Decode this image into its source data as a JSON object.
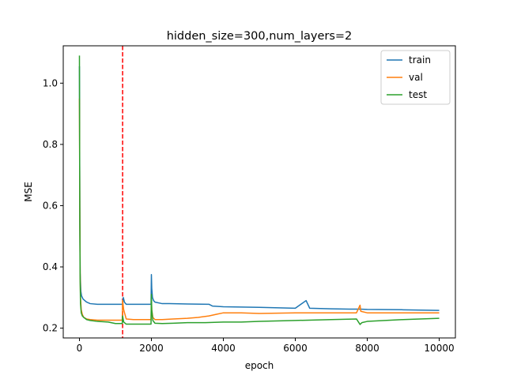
{
  "chart_data": {
    "type": "line",
    "title": "hidden_size=300,num_layers=2",
    "xlabel": "epoch",
    "ylabel": "MSE",
    "xlim": [
      -450,
      10450
    ],
    "ylim": [
      0.168,
      1.122
    ],
    "xticks": [
      0,
      2000,
      4000,
      6000,
      8000,
      10000
    ],
    "yticks": [
      0.2,
      0.4,
      0.6,
      0.8,
      1.0
    ],
    "xtick_labels": [
      "0",
      "2000",
      "4000",
      "6000",
      "8000",
      "10000"
    ],
    "ytick_labels": [
      "0.2",
      "0.4",
      "0.6",
      "0.8",
      "1.0"
    ],
    "grid": false,
    "legend_position": "top-right",
    "vline": {
      "x": 1200,
      "color": "#ff0000",
      "style": "dashed"
    },
    "series": [
      {
        "name": "train",
        "color": "#1f77b4",
        "x": [
          0,
          10,
          20,
          40,
          60,
          100,
          150,
          200,
          300,
          500,
          1000,
          1100,
          1200,
          1220,
          1250,
          1300,
          1600,
          1990,
          2000,
          2010,
          2030,
          2060,
          2100,
          2300,
          2500,
          3000,
          3600,
          3700,
          4000,
          5000,
          6000,
          6300,
          6400,
          7000,
          7500,
          7800,
          8000,
          9000,
          10000
        ],
        "y": [
          1.055,
          0.6,
          0.38,
          0.32,
          0.305,
          0.295,
          0.29,
          0.285,
          0.28,
          0.278,
          0.278,
          0.278,
          0.278,
          0.3,
          0.285,
          0.278,
          0.278,
          0.278,
          0.375,
          0.33,
          0.3,
          0.29,
          0.285,
          0.28,
          0.28,
          0.279,
          0.278,
          0.272,
          0.27,
          0.268,
          0.265,
          0.29,
          0.265,
          0.263,
          0.262,
          0.262,
          0.261,
          0.26,
          0.258
        ]
      },
      {
        "name": "val",
        "color": "#ff7f0e",
        "x": [
          0,
          10,
          20,
          30,
          50,
          80,
          120,
          200,
          300,
          500,
          800,
          1000,
          1190,
          1200,
          1230,
          1300,
          1500,
          1990,
          2000,
          2010,
          2040,
          2100,
          2300,
          2600,
          3000,
          3300,
          3600,
          3800,
          4000,
          4500,
          5000,
          5500,
          6000,
          7000,
          7700,
          7800,
          7820,
          8000,
          9000,
          10000
        ],
        "y": [
          0.95,
          0.6,
          0.38,
          0.3,
          0.26,
          0.245,
          0.235,
          0.23,
          0.228,
          0.226,
          0.226,
          0.226,
          0.226,
          0.29,
          0.26,
          0.23,
          0.228,
          0.228,
          0.29,
          0.26,
          0.235,
          0.228,
          0.228,
          0.23,
          0.232,
          0.235,
          0.24,
          0.245,
          0.25,
          0.25,
          0.248,
          0.249,
          0.25,
          0.25,
          0.25,
          0.275,
          0.255,
          0.25,
          0.25,
          0.25
        ]
      },
      {
        "name": "test",
        "color": "#2ca02c",
        "x": [
          0,
          5,
          10,
          20,
          30,
          50,
          80,
          120,
          200,
          300,
          500,
          800,
          1000,
          1190,
          1200,
          1230,
          1300,
          1500,
          1990,
          2000,
          2010,
          2040,
          2100,
          2300,
          2600,
          3000,
          3500,
          4000,
          4500,
          5000,
          6000,
          7000,
          7700,
          7800,
          7850,
          8000,
          9000,
          10000
        ],
        "y": [
          1.09,
          0.8,
          0.55,
          0.35,
          0.28,
          0.25,
          0.24,
          0.235,
          0.228,
          0.225,
          0.222,
          0.22,
          0.215,
          0.215,
          0.24,
          0.22,
          0.213,
          0.213,
          0.213,
          0.31,
          0.26,
          0.225,
          0.216,
          0.215,
          0.216,
          0.218,
          0.218,
          0.22,
          0.22,
          0.222,
          0.225,
          0.228,
          0.23,
          0.212,
          0.218,
          0.222,
          0.228,
          0.232
        ]
      }
    ]
  }
}
